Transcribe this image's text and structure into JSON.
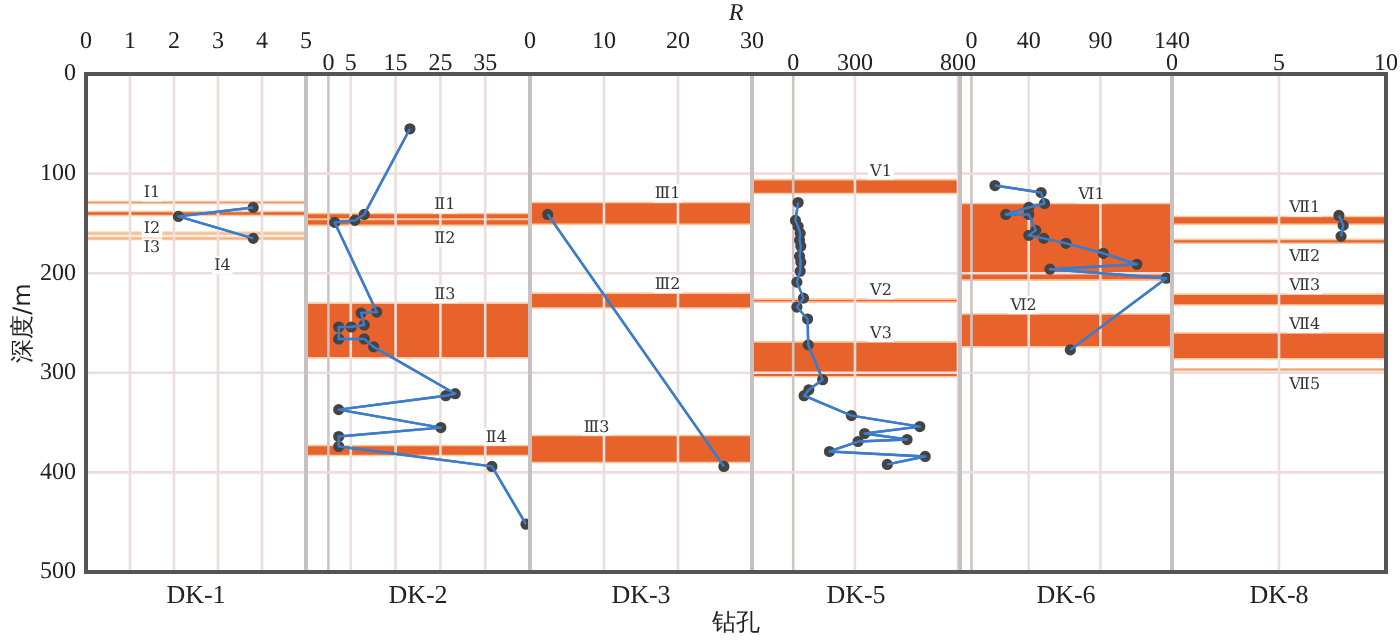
{
  "chart_data": [
    {
      "type": "line",
      "xlabel": "DK-1",
      "ylabel": "深度/m",
      "annotations": [
        "R",
        "钻孔"
      ],
      "xlim": [
        0,
        5
      ],
      "xticks": [
        0,
        1,
        2,
        3,
        4,
        5
      ],
      "ylim": [
        500,
        0
      ],
      "yticks": [
        0,
        100,
        200,
        300,
        400,
        500
      ],
      "grid": true,
      "marker": "circle",
      "line_style": "solid",
      "series": [
        {
          "color": "#3d7cc9",
          "x": [
            3.8,
            2.1,
            3.8
          ],
          "values": [
            134,
            143,
            165
          ]
        }
      ],
      "bands": [
        {
          "axis": "y",
          "from": 128,
          "to": 130,
          "label": "Ⅰ1",
          "color": "#e8622c"
        },
        {
          "axis": "y",
          "from": 138,
          "to": 142,
          "label": "Ⅰ2",
          "color": "#e8622c"
        },
        {
          "axis": "y",
          "from": 159,
          "to": 161,
          "label": "Ⅰ3",
          "color": "#f2b27c"
        },
        {
          "axis": "y",
          "from": 164,
          "to": 166,
          "label": "Ⅰ4",
          "color": "#e8622c"
        }
      ]
    },
    {
      "type": "line",
      "xlabel": "DK-2",
      "xlim": [
        -5,
        45
      ],
      "xticks": [
        0,
        5,
        15,
        25,
        35
      ],
      "ylim": [
        500,
        0
      ],
      "yticks": [
        0,
        100,
        200,
        300,
        400,
        500
      ],
      "tick_labels": "x",
      "grid": true,
      "marker": "circle",
      "line_style": "solid",
      "series": [
        {
          "color": "#3d7cc9",
          "x": [
            18.2,
            8.0,
            5.9,
            1.4,
            10.8,
            7.3,
            8.0,
            5.1,
            2.3,
            2.3,
            8.0,
            10.1,
            28.3,
            26.2,
            2.3,
            25.1,
            2.3,
            2.3,
            36.5,
            44.1
          ],
          "values": [
            55,
            141,
            147,
            149,
            239,
            240,
            252,
            254,
            254,
            266,
            266,
            274,
            321,
            323,
            337,
            355,
            364,
            374,
            394,
            452
          ]
        }
      ],
      "bands": [
        {
          "axis": "y",
          "from": 140,
          "to": 146,
          "label": "Ⅱ1",
          "color": "#e8622c"
        },
        {
          "axis": "y",
          "from": 146,
          "to": 152,
          "label": "Ⅱ2",
          "color": "#e8622c"
        },
        {
          "axis": "y",
          "from": 230,
          "to": 285,
          "label": "Ⅱ3",
          "color": "#e8622c"
        },
        {
          "axis": "y",
          "from": 373,
          "to": 383,
          "label": "Ⅱ4",
          "color": "#e8622c"
        }
      ]
    },
    {
      "type": "line",
      "xlabel": "DK-3",
      "xlim": [
        0,
        30
      ],
      "xticks": [
        0,
        10,
        20,
        30
      ],
      "ylim": [
        500,
        0
      ],
      "yticks": [
        0,
        100,
        200,
        300,
        400,
        500
      ],
      "tick_labels": "x",
      "grid": true,
      "marker": "circle",
      "line_style": "solid",
      "series": [
        {
          "color": "#3d7cc9",
          "x": [
            2.4,
            26.2
          ],
          "values": [
            141,
            394
          ]
        }
      ],
      "bands": [
        {
          "axis": "y",
          "from": 129,
          "to": 151,
          "label": "Ⅲ1",
          "color": "#e8622c"
        },
        {
          "axis": "y",
          "from": 220,
          "to": 235,
          "label": "Ⅲ2",
          "color": "#e8622c"
        },
        {
          "axis": "y",
          "from": 363,
          "to": 390,
          "label": "Ⅲ3",
          "color": "#e8622c"
        }
      ]
    },
    {
      "type": "line",
      "xlabel": "DK-5",
      "xlim": [
        -200,
        810
      ],
      "xticks": [
        0,
        300,
        800
      ],
      "ylim": [
        500,
        0
      ],
      "yticks": [
        0,
        100,
        200,
        300,
        400,
        500
      ],
      "tick_labels": "x",
      "grid": true,
      "marker": "circle",
      "line_style": "solid",
      "series": [
        {
          "color": "#3d7cc9",
          "x": [
            24,
            11,
            24,
            34,
            31,
            37,
            31,
            37,
            34,
            18,
            50,
            18,
            70,
            73,
            143,
            76,
            53,
            283,
            615,
            347,
            553,
            315,
            176,
            641,
            457
          ],
          "values": [
            129,
            147,
            153,
            160,
            167,
            173,
            183,
            189,
            198,
            209,
            225,
            234,
            246,
            272,
            307,
            317,
            323,
            343,
            354,
            361,
            367,
            369,
            379,
            384,
            392
          ]
        }
      ],
      "bands": [
        {
          "axis": "y",
          "from": 106,
          "to": 120,
          "label": "Ⅴ1",
          "color": "#e8622c"
        },
        {
          "axis": "y",
          "from": 226,
          "to": 229,
          "label": "Ⅴ2",
          "color": "#e8622c"
        },
        {
          "axis": "y",
          "from": 269,
          "to": 304,
          "label": "Ⅴ3",
          "color": "#e8622c"
        }
      ]
    },
    {
      "type": "line",
      "xlabel": "DK-6",
      "xlim": [
        -8,
        140
      ],
      "xticks": [
        0,
        40,
        90,
        140
      ],
      "ylim": [
        500,
        0
      ],
      "yticks": [
        0,
        100,
        200,
        300,
        400,
        500
      ],
      "tick_labels": "x",
      "grid": true,
      "marker": "circle",
      "line_style": "solid",
      "series": [
        {
          "color": "#3d7cc9",
          "x": [
            16.4,
            48.6,
            51,
            40,
            24,
            40,
            44.9,
            40,
            50.5,
            66,
            92,
            115.5,
            54.8,
            136,
            69
          ],
          "values": [
            112,
            119,
            130,
            134,
            141,
            141,
            157,
            162,
            165,
            170,
            180,
            191,
            196,
            205,
            277
          ]
        }
      ],
      "bands": [
        {
          "axis": "y",
          "from": 130,
          "to": 207,
          "label": "Ⅵ1",
          "color": "#e8622c"
        },
        {
          "axis": "y",
          "from": 241,
          "to": 274,
          "label": "Ⅵ2",
          "color": "#e8622c"
        }
      ]
    },
    {
      "type": "line",
      "xlabel": "DK-8",
      "xlim": [
        0,
        10
      ],
      "xticks": [
        0,
        5,
        10
      ],
      "ylim": [
        500,
        0
      ],
      "yticks": [
        0,
        100,
        200,
        300,
        400,
        500
      ],
      "tick_labels": "x",
      "grid": true,
      "marker": "circle",
      "line_style": "solid",
      "series": [
        {
          "color": "#3d7cc9",
          "x": [
            7.8,
            8.0,
            7.9
          ],
          "values": [
            142,
            152,
            163
          ]
        }
      ],
      "bands": [
        {
          "axis": "y",
          "from": 143,
          "to": 151,
          "label": "Ⅶ1",
          "color": "#e8622c"
        },
        {
          "axis": "y",
          "from": 166,
          "to": 170,
          "label": "Ⅶ2",
          "color": "#e8622c"
        },
        {
          "axis": "y",
          "from": 221,
          "to": 232,
          "label": "Ⅶ3",
          "color": "#e8622c"
        },
        {
          "axis": "y",
          "from": 260,
          "to": 286,
          "label": "Ⅶ4",
          "color": "#e8622c"
        },
        {
          "axis": "y",
          "from": 296,
          "to": 298,
          "label": "Ⅶ5",
          "color": "#e8622c"
        }
      ]
    }
  ]
}
